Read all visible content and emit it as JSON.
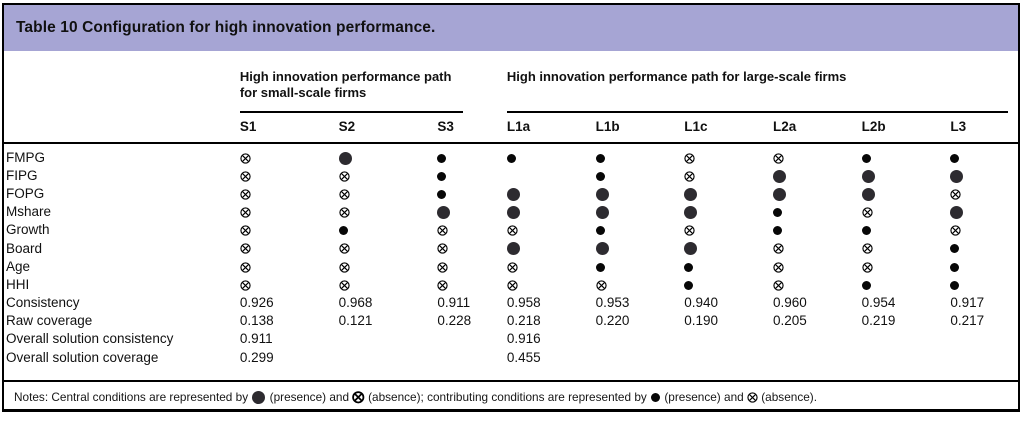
{
  "title": "Table 10 Configuration for high innovation performance.",
  "colors": {
    "title_bg": "#a6a5d4",
    "border": "#000000",
    "central_dot": "#2d2b30",
    "contributing_dot": "#070707"
  },
  "table": {
    "groups": [
      {
        "label": "High innovation performance path for small-scale firms",
        "span": 3
      },
      {
        "label": "High innovation performance path for large-scale firms",
        "span": 6
      }
    ],
    "columns": [
      "S1",
      "S2",
      "S3",
      "L1a",
      "L1b",
      "L1c",
      "L2a",
      "L2b",
      "L3"
    ],
    "symbol_key": {
      "P": "central-presence-large-filled-circle",
      "X": "central-absence-large-circle-cross",
      "p": "contributing-presence-small-filled-circle",
      "x": "contributing-absence-small-circle-cross"
    },
    "rows": [
      {
        "label": "FMPG",
        "cells": [
          "x",
          "P",
          "p",
          "p",
          "p",
          "x",
          "x",
          "p",
          "p"
        ]
      },
      {
        "label": "FIPG",
        "cells": [
          "x",
          "x",
          "p",
          "",
          "p",
          "x",
          "P",
          "P",
          "P"
        ]
      },
      {
        "label": "FOPG",
        "cells": [
          "x",
          "x",
          "p",
          "P",
          "P",
          "P",
          "P",
          "P",
          "x"
        ]
      },
      {
        "label": "Mshare",
        "cells": [
          "x",
          "x",
          "P",
          "P",
          "P",
          "P",
          "p",
          "x",
          "P"
        ]
      },
      {
        "label": "Growth",
        "cells": [
          "x",
          "p",
          "x",
          "x",
          "p",
          "x",
          "p",
          "p",
          "x"
        ]
      },
      {
        "label": "Board",
        "cells": [
          "x",
          "x",
          "x",
          "P",
          "P",
          "P",
          "x",
          "x",
          "p"
        ]
      },
      {
        "label": "Age",
        "cells": [
          "x",
          "x",
          "x",
          "x",
          "p",
          "p",
          "x",
          "x",
          "p"
        ]
      },
      {
        "label": "HHI",
        "cells": [
          "x",
          "x",
          "x",
          "x",
          "x",
          "p",
          "x",
          "p",
          "p"
        ]
      },
      {
        "label": "Consistency",
        "cells": [
          "0.926",
          "0.968",
          "0.911",
          "0.958",
          "0.953",
          "0.940",
          "0.960",
          "0.954",
          "0.917"
        ]
      },
      {
        "label": "Raw coverage",
        "cells": [
          "0.138",
          "0.121",
          "0.228",
          "0.218",
          "0.220",
          "0.190",
          "0.205",
          "0.219",
          "0.217"
        ]
      },
      {
        "label": "Overall solution consistency",
        "cells": [
          "0.911",
          "",
          "",
          "0.916",
          "",
          "",
          "",
          "",
          ""
        ]
      },
      {
        "label": "Overall solution coverage",
        "cells": [
          "0.299",
          "",
          "",
          "0.455",
          "",
          "",
          "",
          "",
          ""
        ]
      }
    ]
  },
  "notes": {
    "parts": [
      "Notes: Central conditions are represented by",
      "(presence) and",
      "(absence); contributing conditions are represented by",
      "(presence) and",
      "(absence)."
    ],
    "symbols": [
      "P",
      "X",
      "p",
      "x"
    ]
  },
  "chart_data": {
    "type": "table",
    "title": "Table 10 Configuration for high innovation performance.",
    "column_groups": [
      {
        "label": "High innovation performance path for small-scale firms",
        "columns": [
          "S1",
          "S2",
          "S3"
        ]
      },
      {
        "label": "High innovation performance path for large-scale firms",
        "columns": [
          "L1a",
          "L1b",
          "L1c",
          "L2a",
          "L2b",
          "L3"
        ]
      }
    ],
    "columns": [
      "S1",
      "S2",
      "S3",
      "L1a",
      "L1b",
      "L1c",
      "L2a",
      "L2b",
      "L3"
    ],
    "rows": [
      {
        "label": "FMPG",
        "cells": [
          "x",
          "P",
          "p",
          "p",
          "p",
          "x",
          "x",
          "p",
          "p"
        ]
      },
      {
        "label": "FIPG",
        "cells": [
          "x",
          "x",
          "p",
          "",
          "p",
          "x",
          "P",
          "P",
          "P"
        ]
      },
      {
        "label": "FOPG",
        "cells": [
          "x",
          "x",
          "p",
          "P",
          "P",
          "P",
          "P",
          "P",
          "x"
        ]
      },
      {
        "label": "Mshare",
        "cells": [
          "x",
          "x",
          "P",
          "P",
          "P",
          "P",
          "p",
          "x",
          "P"
        ]
      },
      {
        "label": "Growth",
        "cells": [
          "x",
          "p",
          "x",
          "x",
          "p",
          "x",
          "p",
          "p",
          "x"
        ]
      },
      {
        "label": "Board",
        "cells": [
          "x",
          "x",
          "x",
          "P",
          "P",
          "P",
          "x",
          "x",
          "p"
        ]
      },
      {
        "label": "Age",
        "cells": [
          "x",
          "x",
          "x",
          "x",
          "p",
          "p",
          "x",
          "x",
          "p"
        ]
      },
      {
        "label": "HHI",
        "cells": [
          "x",
          "x",
          "x",
          "x",
          "x",
          "p",
          "x",
          "p",
          "p"
        ]
      },
      {
        "label": "Consistency",
        "cells": [
          "0.926",
          "0.968",
          "0.911",
          "0.958",
          "0.953",
          "0.940",
          "0.960",
          "0.954",
          "0.917"
        ]
      },
      {
        "label": "Raw coverage",
        "cells": [
          "0.138",
          "0.121",
          "0.228",
          "0.218",
          "0.220",
          "0.190",
          "0.205",
          "0.219",
          "0.217"
        ]
      },
      {
        "label": "Overall solution consistency",
        "cells": [
          "0.911",
          "",
          "",
          "0.916",
          "",
          "",
          "",
          "",
          ""
        ]
      },
      {
        "label": "Overall solution coverage",
        "cells": [
          "0.299",
          "",
          "",
          "0.455",
          "",
          "",
          "",
          "",
          ""
        ]
      }
    ],
    "legend": {
      "P": "central condition presence (large filled circle)",
      "X": "central condition absence (large circled cross)",
      "p": "contributing condition presence (small filled circle)",
      "x": "contributing condition absence (small circled cross)"
    }
  }
}
